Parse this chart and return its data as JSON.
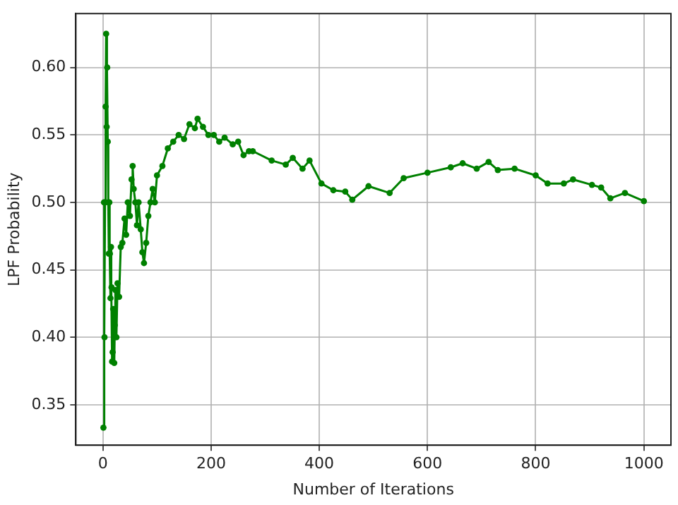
{
  "chart_data": {
    "type": "line",
    "xlabel": "Number of Iterations",
    "ylabel": "LPF Probability",
    "x": [
      1,
      2,
      3,
      4,
      5,
      6,
      7,
      8,
      9,
      10,
      11,
      12,
      13,
      14,
      15,
      16,
      17,
      18,
      19,
      21,
      22,
      23,
      25,
      27,
      30,
      33,
      36,
      40,
      43,
      46,
      50,
      53,
      55,
      57,
      60,
      63,
      66,
      70,
      73,
      76,
      80,
      84,
      88,
      92,
      96,
      100,
      110,
      120,
      130,
      140,
      150,
      160,
      170,
      175,
      185,
      195,
      205,
      215,
      225,
      240,
      250,
      260,
      270,
      277,
      312,
      338,
      351,
      369,
      382,
      404,
      426,
      448,
      461,
      491,
      530,
      556,
      600,
      643,
      665,
      691,
      713,
      730,
      761,
      800,
      822,
      852,
      869,
      904,
      921,
      938,
      965,
      1000
    ],
    "series": [
      {
        "color": "#008000",
        "values": [
          0.333,
          0.5,
          0.4,
          0.5,
          0.571,
          0.625,
          0.556,
          0.6,
          0.545,
          0.5,
          0.462,
          0.5,
          0.462,
          0.429,
          0.467,
          0.437,
          0.382,
          0.389,
          0.421,
          0.381,
          0.409,
          0.435,
          0.4,
          0.44,
          0.43,
          0.467,
          0.47,
          0.488,
          0.476,
          0.5,
          0.49,
          0.517,
          0.527,
          0.51,
          0.5,
          0.483,
          0.5,
          0.48,
          0.463,
          0.455,
          0.47,
          0.49,
          0.5,
          0.51,
          0.5,
          0.52,
          0.527,
          0.54,
          0.545,
          0.55,
          0.547,
          0.558,
          0.555,
          0.562,
          0.556,
          0.55,
          0.55,
          0.545,
          0.548,
          0.543,
          0.545,
          0.535,
          0.538,
          0.538,
          0.531,
          0.528,
          0.533,
          0.525,
          0.531,
          0.514,
          0.509,
          0.508,
          0.502,
          0.512,
          0.507,
          0.518,
          0.522,
          0.526,
          0.529,
          0.525,
          0.53,
          0.524,
          0.525,
          0.52,
          0.514,
          0.514,
          0.517,
          0.513,
          0.511,
          0.503,
          0.507,
          0.501
        ]
      }
    ],
    "xlim": [
      -50,
      1050
    ],
    "xticks": [
      0,
      200,
      400,
      600,
      800,
      1000
    ],
    "ylim": [
      0.32,
      0.64
    ],
    "yticks": [
      {
        "value": 0.35,
        "label": "0.35"
      },
      {
        "value": 0.4,
        "label": "0.40"
      },
      {
        "value": 0.45,
        "label": "0.45"
      },
      {
        "value": 0.5,
        "label": "0.50"
      },
      {
        "value": 0.55,
        "label": "0.55"
      },
      {
        "value": 0.6,
        "label": "0.60"
      }
    ],
    "grid": true,
    "marker": "circle",
    "line_style": "solid"
  }
}
